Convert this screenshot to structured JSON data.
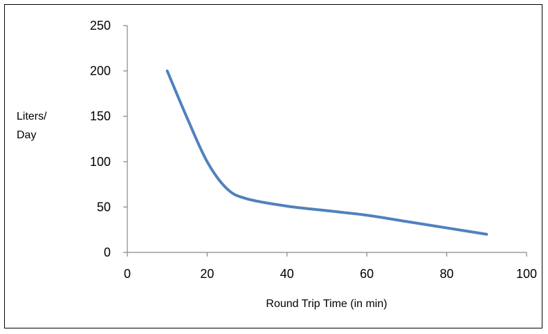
{
  "chart_data": {
    "type": "line",
    "title": "",
    "xlabel": "Round Trip Time (in min)",
    "ylabel_lines": [
      "Liters/",
      "Day"
    ],
    "xlim": [
      0,
      100
    ],
    "ylim": [
      0,
      250
    ],
    "xticks": [
      0,
      20,
      40,
      60,
      80,
      100
    ],
    "yticks": [
      0,
      50,
      100,
      150,
      200,
      250
    ],
    "grid": false,
    "legend": "none",
    "series": [
      {
        "color": "#4F81BD",
        "x": [
          10,
          15,
          20,
          25,
          30,
          40,
          50,
          60,
          70,
          80,
          90
        ],
        "y": [
          200,
          148,
          100,
          70,
          59,
          51,
          46,
          41,
          34,
          27,
          20
        ]
      }
    ]
  }
}
